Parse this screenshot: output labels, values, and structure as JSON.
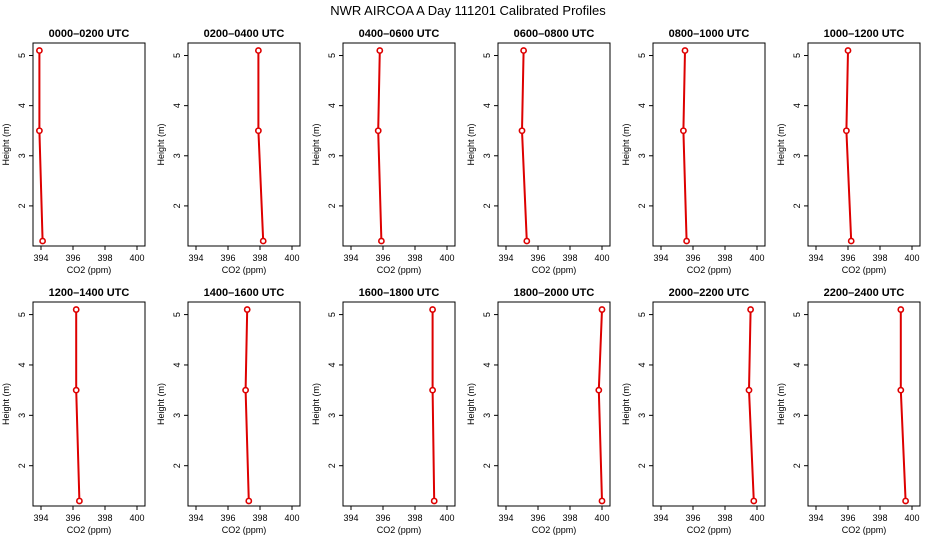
{
  "title": "NWR AIRCOA A  Day 111201  Calibrated Profiles",
  "colors": {
    "line": "#dd0000",
    "marker": "#dd0000",
    "axis": "#000000"
  },
  "chart_data": {
    "type": "line",
    "xlabel": "CO2 (ppm)",
    "ylabel": "Height (m)",
    "xlim": [
      393.5,
      400.5
    ],
    "ylim": [
      1.2,
      5.25
    ],
    "xticks": [
      394,
      396,
      398,
      400
    ],
    "yticks": [
      2,
      3,
      4,
      5
    ],
    "panels": [
      {
        "title": "0000–0200 UTC",
        "points": [
          {
            "x": 393.9,
            "y": 5.1
          },
          {
            "x": 393.9,
            "y": 3.5
          },
          {
            "x": 394.1,
            "y": 1.3
          }
        ]
      },
      {
        "title": "0200–0400 UTC",
        "points": [
          {
            "x": 397.9,
            "y": 5.1
          },
          {
            "x": 397.9,
            "y": 3.5
          },
          {
            "x": 398.2,
            "y": 1.3
          }
        ]
      },
      {
        "title": "0400–0600 UTC",
        "points": [
          {
            "x": 395.8,
            "y": 5.1
          },
          {
            "x": 395.7,
            "y": 3.5
          },
          {
            "x": 395.9,
            "y": 1.3
          }
        ]
      },
      {
        "title": "0600–0800 UTC",
        "points": [
          {
            "x": 395.1,
            "y": 5.1
          },
          {
            "x": 395.0,
            "y": 3.5
          },
          {
            "x": 395.3,
            "y": 1.3
          }
        ]
      },
      {
        "title": "0800–1000 UTC",
        "points": [
          {
            "x": 395.5,
            "y": 5.1
          },
          {
            "x": 395.4,
            "y": 3.5
          },
          {
            "x": 395.6,
            "y": 1.3
          }
        ]
      },
      {
        "title": "1000–1200 UTC",
        "points": [
          {
            "x": 396.0,
            "y": 5.1
          },
          {
            "x": 395.9,
            "y": 3.5
          },
          {
            "x": 396.2,
            "y": 1.3
          }
        ]
      },
      {
        "title": "1200–1400 UTC",
        "points": [
          {
            "x": 396.2,
            "y": 5.1
          },
          {
            "x": 396.2,
            "y": 3.5
          },
          {
            "x": 396.4,
            "y": 1.3
          }
        ]
      },
      {
        "title": "1400–1600 UTC",
        "points": [
          {
            "x": 397.2,
            "y": 5.1
          },
          {
            "x": 397.1,
            "y": 3.5
          },
          {
            "x": 397.3,
            "y": 1.3
          }
        ]
      },
      {
        "title": "1600–1800 UTC",
        "points": [
          {
            "x": 399.1,
            "y": 5.1
          },
          {
            "x": 399.1,
            "y": 3.5
          },
          {
            "x": 399.2,
            "y": 1.3
          }
        ]
      },
      {
        "title": "1800–2000 UTC",
        "points": [
          {
            "x": 400.0,
            "y": 5.1
          },
          {
            "x": 399.8,
            "y": 3.5
          },
          {
            "x": 400.0,
            "y": 1.3
          }
        ]
      },
      {
        "title": "2000–2200 UTC",
        "points": [
          {
            "x": 399.6,
            "y": 5.1
          },
          {
            "x": 399.5,
            "y": 3.5
          },
          {
            "x": 399.8,
            "y": 1.3
          }
        ]
      },
      {
        "title": "2200–2400 UTC",
        "points": [
          {
            "x": 399.3,
            "y": 5.1
          },
          {
            "x": 399.3,
            "y": 3.5
          },
          {
            "x": 399.6,
            "y": 1.3
          }
        ]
      }
    ]
  }
}
